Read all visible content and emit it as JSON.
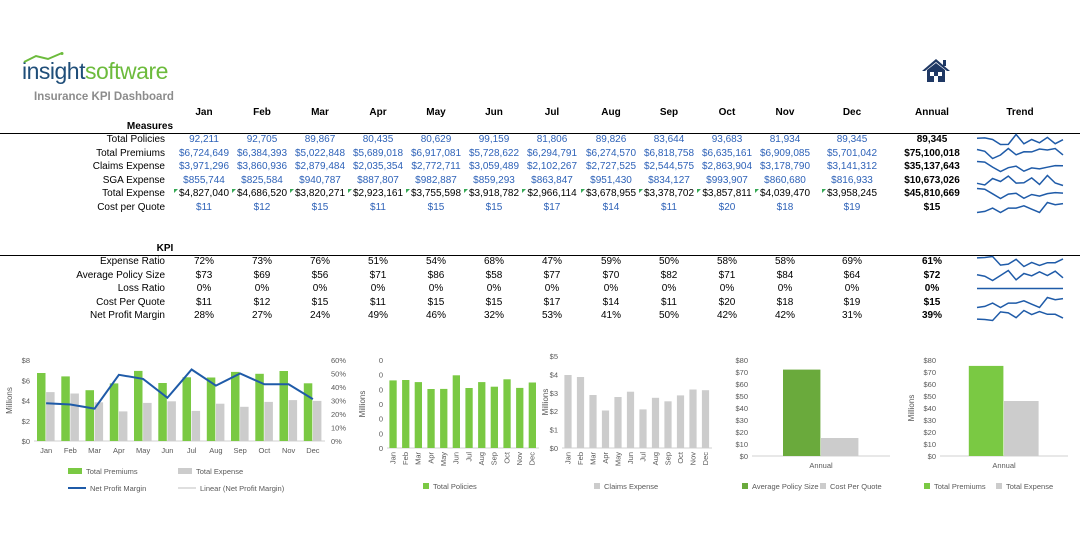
{
  "logo": {
    "text_a": "insight",
    "text_b": "software"
  },
  "subtitle": "Insurance KPI Dashboard",
  "home_icon": "home-icon",
  "months": [
    "Jan",
    "Feb",
    "Mar",
    "Apr",
    "May",
    "Jun",
    "Jul",
    "Aug",
    "Sep",
    "Oct",
    "Nov",
    "Dec"
  ],
  "annual_header": "Annual",
  "trend_header": "Trend",
  "measures": {
    "title": "Measures",
    "rows": [
      {
        "label": "Total Policies",
        "values": [
          "92,211",
          "92,705",
          "89,867",
          "80,435",
          "80,629",
          "99,159",
          "81,806",
          "89,826",
          "83,644",
          "93,683",
          "81,934",
          "89,345"
        ],
        "annual": "89,345",
        "style": "blue",
        "trend": [
          92211,
          92705,
          89867,
          80435,
          80629,
          99159,
          81806,
          89826,
          83644,
          93683,
          81934,
          89345
        ]
      },
      {
        "label": "Total Premiums",
        "values": [
          "$6,724,649",
          "$6,384,393",
          "$5,022,848",
          "$5,689,018",
          "$6,917,081",
          "$5,728,622",
          "$6,294,791",
          "$6,274,570",
          "$6,818,758",
          "$6,635,161",
          "$6,909,085",
          "$5,701,042"
        ],
        "annual": "$75,100,018",
        "style": "blue",
        "trend": [
          6724649,
          6384393,
          5022848,
          5689018,
          6917081,
          5728622,
          6294791,
          6274570,
          6818758,
          6635161,
          6909085,
          5701042
        ]
      },
      {
        "label": "Claims Expense",
        "values": [
          "$3,971,296",
          "$3,860,936",
          "$2,879,484",
          "$2,035,354",
          "$2,772,711",
          "$3,059,489",
          "$2,102,267",
          "$2,727,525",
          "$2,544,575",
          "$2,863,904",
          "$3,178,790",
          "$3,141,312"
        ],
        "annual": "$35,137,643",
        "style": "blue",
        "trend": [
          3971296,
          3860936,
          2879484,
          2035354,
          2772711,
          3059489,
          2102267,
          2727525,
          2544575,
          2863904,
          3178790,
          3141312
        ]
      },
      {
        "label": "SGA Expense",
        "values": [
          "$855,744",
          "$825,584",
          "$940,787",
          "$887,807",
          "$982,887",
          "$859,293",
          "$863,847",
          "$951,430",
          "$834,127",
          "$993,907",
          "$860,680",
          "$816,933"
        ],
        "annual": "$10,673,026",
        "style": "blue",
        "trend": [
          855744,
          825584,
          940787,
          887807,
          982887,
          859293,
          863847,
          951430,
          834127,
          993907,
          860680,
          816933
        ]
      },
      {
        "label": "Total Expense",
        "values": [
          "$4,827,040",
          "$4,686,520",
          "$3,820,271",
          "$2,923,161",
          "$3,755,598",
          "$3,918,782",
          "$2,966,114",
          "$3,678,955",
          "$3,378,702",
          "$3,857,811",
          "$4,039,470",
          "$3,958,245"
        ],
        "annual": "$45,810,669",
        "style": "black",
        "flags": true,
        "trend": [
          4827040,
          4686520,
          3820271,
          2923161,
          3755598,
          3918782,
          2966114,
          3678955,
          3378702,
          3857811,
          4039470,
          3958245
        ]
      },
      {
        "label": "Cost per Quote",
        "values": [
          "$11",
          "$12",
          "$15",
          "$11",
          "$15",
          "$15",
          "$17",
          "$14",
          "$11",
          "$20",
          "$18",
          "$19"
        ],
        "annual": "$15",
        "style": "blue",
        "trend": [
          11,
          12,
          15,
          11,
          15,
          15,
          17,
          14,
          11,
          20,
          18,
          19
        ]
      }
    ]
  },
  "kpi": {
    "title": "KPI",
    "rows": [
      {
        "label": "Expense Ratio",
        "values": [
          "72%",
          "73%",
          "76%",
          "51%",
          "54%",
          "68%",
          "47%",
          "59%",
          "50%",
          "58%",
          "58%",
          "69%"
        ],
        "annual": "61%",
        "trend": [
          72,
          73,
          76,
          51,
          54,
          68,
          47,
          59,
          50,
          58,
          58,
          69
        ]
      },
      {
        "label": "Average Policy Size",
        "values": [
          "$73",
          "$69",
          "$56",
          "$71",
          "$86",
          "$58",
          "$77",
          "$70",
          "$82",
          "$71",
          "$84",
          "$64"
        ],
        "annual": "$72",
        "trend": [
          73,
          69,
          56,
          71,
          86,
          58,
          77,
          70,
          82,
          71,
          84,
          64
        ]
      },
      {
        "label": "Loss Ratio",
        "values": [
          "0%",
          "0%",
          "0%",
          "0%",
          "0%",
          "0%",
          "0%",
          "0%",
          "0%",
          "0%",
          "0%",
          "0%"
        ],
        "annual": "0%",
        "trend": [
          0,
          0,
          0,
          0,
          0,
          0,
          0,
          0,
          0,
          0,
          0,
          0
        ]
      },
      {
        "label": "Cost Per Quote",
        "values": [
          "$11",
          "$12",
          "$15",
          "$11",
          "$15",
          "$15",
          "$17",
          "$14",
          "$11",
          "$20",
          "$18",
          "$19"
        ],
        "annual": "$15",
        "trend": [
          11,
          12,
          15,
          11,
          15,
          15,
          17,
          14,
          11,
          20,
          18,
          19
        ]
      },
      {
        "label": "Net Profit Margin",
        "values": [
          "28%",
          "27%",
          "24%",
          "49%",
          "46%",
          "32%",
          "53%",
          "41%",
          "50%",
          "42%",
          "42%",
          "31%"
        ],
        "annual": "39%",
        "trend": [
          28,
          27,
          24,
          49,
          46,
          32,
          53,
          41,
          50,
          42,
          42,
          31
        ]
      }
    ]
  },
  "colors": {
    "green": "#7ac943",
    "darkgreen": "#6aaa3c",
    "gray": "#cccccc",
    "blue": "#1f5ba8",
    "label_blue": "#2e62b8"
  },
  "chart_data": [
    {
      "type": "bar",
      "categories": [
        "Jan",
        "Feb",
        "Mar",
        "Apr",
        "May",
        "Jun",
        "Jul",
        "Aug",
        "Sep",
        "Oct",
        "Nov",
        "Dec"
      ],
      "ylabel": "Millions",
      "ylim": [
        0,
        8
      ],
      "yticks": [
        "$0",
        "$2",
        "$4",
        "$6",
        "$8"
      ],
      "y2lim": [
        0,
        60
      ],
      "y2ticks": [
        "0%",
        "10%",
        "20%",
        "30%",
        "40%",
        "50%",
        "60%"
      ],
      "series": [
        {
          "name": "Total Premiums",
          "kind": "bar",
          "values": [
            6.72,
            6.38,
            5.02,
            5.69,
            6.92,
            5.73,
            6.29,
            6.27,
            6.82,
            6.64,
            6.91,
            5.7
          ]
        },
        {
          "name": "Total Expense",
          "kind": "bar",
          "values": [
            4.83,
            4.69,
            3.82,
            2.92,
            3.76,
            3.92,
            2.97,
            3.68,
            3.38,
            3.86,
            4.04,
            3.96
          ]
        },
        {
          "name": "Net Profit Margin",
          "kind": "line",
          "axis": "right",
          "values": [
            28,
            27,
            24,
            49,
            46,
            32,
            53,
            41,
            50,
            42,
            42,
            31
          ]
        },
        {
          "name": "Linear (Net Profit Margin)",
          "kind": "trendline"
        }
      ],
      "legend": "bottom"
    },
    {
      "type": "bar",
      "categories": [
        "Jan",
        "Feb",
        "Mar",
        "Apr",
        "May",
        "Jun",
        "Jul",
        "Aug",
        "Sep",
        "Oct",
        "Nov",
        "Dec"
      ],
      "ylabel": "Millions",
      "ylim": [
        0,
        0.12
      ],
      "yticks": [
        "0",
        "0",
        "0",
        "0",
        "0",
        "0",
        "0"
      ],
      "series": [
        {
          "name": "Total Policies",
          "values": [
            0.0922,
            0.0927,
            0.0899,
            0.0804,
            0.0806,
            0.0992,
            0.0818,
            0.0898,
            0.0836,
            0.0937,
            0.0819,
            0.0893
          ]
        }
      ],
      "legend": "bottom"
    },
    {
      "type": "bar",
      "categories": [
        "Jan",
        "Feb",
        "Mar",
        "Apr",
        "May",
        "Jun",
        "Jul",
        "Aug",
        "Sep",
        "Oct",
        "Nov",
        "Dec"
      ],
      "ylabel": "Millions",
      "ylim": [
        0,
        5
      ],
      "yticks": [
        "$0",
        "$1",
        "$2",
        "$3",
        "$4",
        "$5"
      ],
      "series": [
        {
          "name": "Claims Expense",
          "values": [
            3.97,
            3.86,
            2.88,
            2.04,
            2.77,
            3.06,
            2.1,
            2.73,
            2.54,
            2.86,
            3.18,
            3.14
          ]
        }
      ],
      "legend": "bottom"
    },
    {
      "type": "bar",
      "categories": [
        "Annual"
      ],
      "ylim": [
        0,
        80
      ],
      "yticks": [
        "$0",
        "$10",
        "$20",
        "$30",
        "$40",
        "$50",
        "$60",
        "$70",
        "$80"
      ],
      "series": [
        {
          "name": "Average Policy Size",
          "values": [
            72
          ]
        },
        {
          "name": "Cost Per Quote",
          "values": [
            15
          ]
        }
      ],
      "legend": "bottom"
    },
    {
      "type": "bar",
      "categories": [
        "Annual"
      ],
      "ylabel": "Millions",
      "ylim": [
        0,
        80
      ],
      "yticks": [
        "$0",
        "$10",
        "$20",
        "$30",
        "$40",
        "$50",
        "$60",
        "$70",
        "$80"
      ],
      "series": [
        {
          "name": "Total Premiums",
          "values": [
            75.1
          ]
        },
        {
          "name": "Total Expense",
          "values": [
            45.81
          ]
        }
      ],
      "legend": "bottom"
    }
  ]
}
